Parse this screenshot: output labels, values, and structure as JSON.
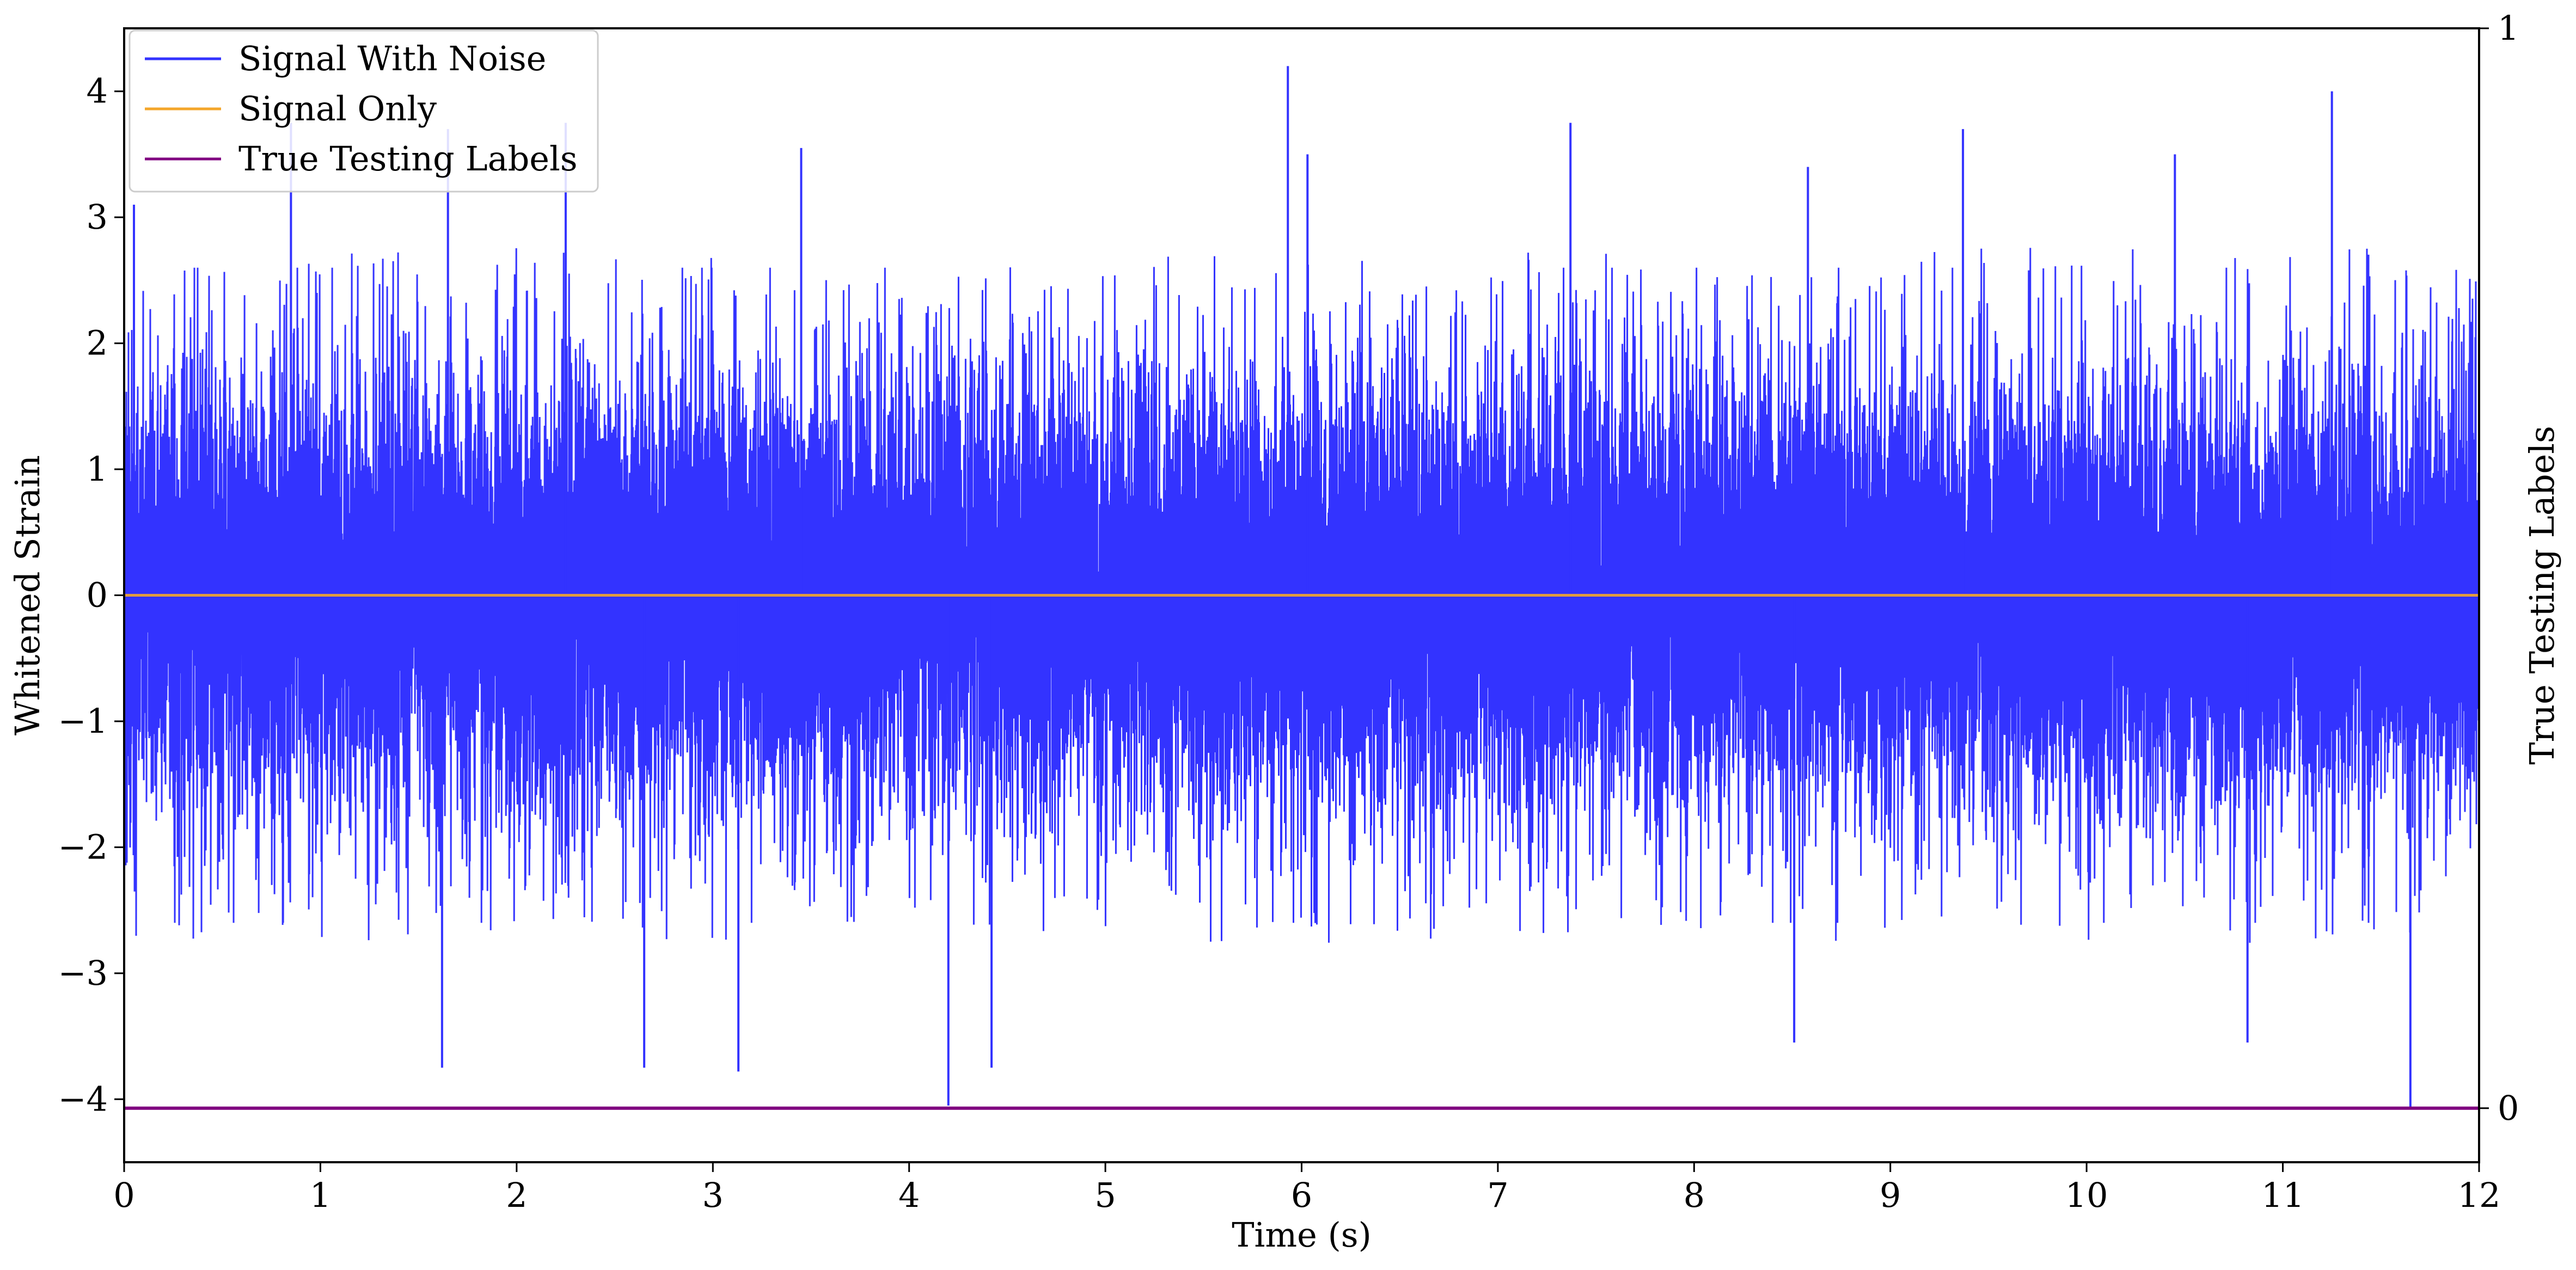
{
  "chart_data": {
    "type": "line",
    "title": "",
    "xlabel": "Time (s)",
    "ylabel": "Whitened Strain",
    "y2label": "True Testing Labels",
    "xlim": [
      0,
      12
    ],
    "ylim": [
      -4.5,
      4.5
    ],
    "y2lim": [
      -0.05,
      1.0
    ],
    "xticks": [
      0,
      1,
      2,
      3,
      4,
      5,
      6,
      7,
      8,
      9,
      10,
      11,
      12
    ],
    "yticks": [
      -4,
      -3,
      -2,
      -1,
      0,
      1,
      2,
      3,
      4
    ],
    "y2ticks": [
      0,
      1
    ],
    "grid": false,
    "legend_position": "top-left",
    "noise_sampling": {
      "duration_s": 12,
      "approx_std": 0.8,
      "typical_peak": 2.3
    },
    "series": [
      {
        "name": "Signal With Noise",
        "axis": "left",
        "color": "#3333ff",
        "kind": "gaussian-noise",
        "extremes": [
          {
            "x": 0.05,
            "y": 3.1
          },
          {
            "x": 0.85,
            "y": 3.75
          },
          {
            "x": 1.65,
            "y": 3.7
          },
          {
            "x": 2.25,
            "y": 3.75
          },
          {
            "x": 3.45,
            "y": 3.55
          },
          {
            "x": 5.93,
            "y": 4.2
          },
          {
            "x": 6.03,
            "y": 3.5
          },
          {
            "x": 7.37,
            "y": 3.75
          },
          {
            "x": 8.58,
            "y": 3.4
          },
          {
            "x": 9.37,
            "y": 3.7
          },
          {
            "x": 10.45,
            "y": 3.5
          },
          {
            "x": 11.25,
            "y": 4.0
          },
          {
            "x": 1.62,
            "y": -3.75
          },
          {
            "x": 2.65,
            "y": -3.75
          },
          {
            "x": 3.13,
            "y": -3.78
          },
          {
            "x": 4.2,
            "y": -4.05
          },
          {
            "x": 4.42,
            "y": -3.75
          },
          {
            "x": 8.51,
            "y": -3.55
          },
          {
            "x": 10.82,
            "y": -3.55
          },
          {
            "x": 11.65,
            "y": -4.08
          }
        ]
      },
      {
        "name": "Signal Only",
        "axis": "left",
        "color": "#f4a62a",
        "x": [
          0,
          12
        ],
        "y": [
          0,
          0
        ]
      },
      {
        "name": "True Testing Labels",
        "axis": "right",
        "color": "#800080",
        "x": [
          0,
          12
        ],
        "y": [
          0,
          0
        ]
      }
    ]
  }
}
